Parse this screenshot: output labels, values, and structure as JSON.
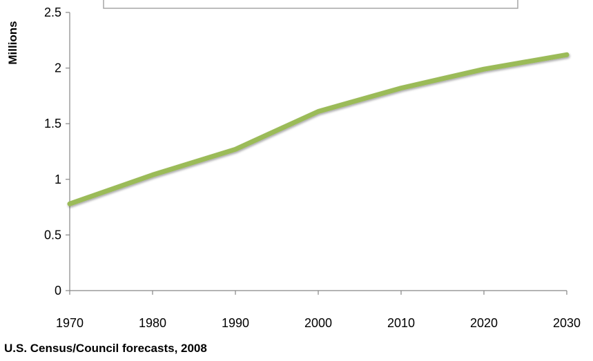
{
  "chart_data": {
    "type": "line",
    "title": "",
    "xlabel": "",
    "ylabel": "Millions",
    "x": [
      1970,
      1980,
      1990,
      2000,
      2010,
      2020,
      2030
    ],
    "x_tick_labels": [
      "1970",
      "1980",
      "1990",
      "2000",
      "2010",
      "2020",
      "2030"
    ],
    "y_ticks": [
      0,
      0.5,
      1,
      1.5,
      2,
      2.5
    ],
    "y_tick_labels": [
      "0",
      "0.5",
      "1",
      "1.5",
      "2",
      "2.5"
    ],
    "ylim": [
      0,
      2.5
    ],
    "grid": false,
    "legend": "none",
    "series": [
      {
        "values": [
          0.78,
          1.04,
          1.27,
          1.61,
          1.82,
          1.99,
          2.12
        ],
        "color": "#9bbb59"
      }
    ]
  },
  "source_note": "U.S. Census/Council forecasts, 2008"
}
